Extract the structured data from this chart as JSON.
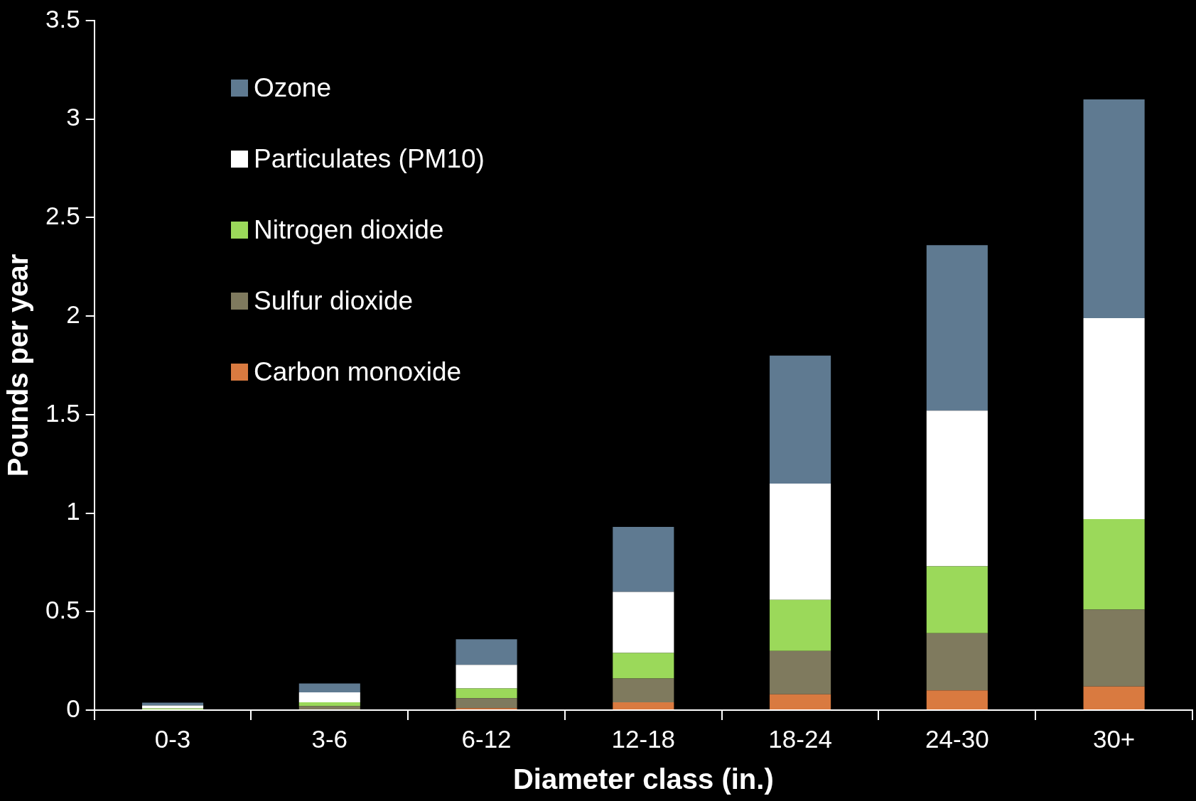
{
  "chart_data": {
    "type": "bar",
    "xlabel": "Diameter class (in.)",
    "ylabel": "Pounds per year",
    "categories": [
      "0-3",
      "3-6",
      "6-12",
      "12-18",
      "18-24",
      "24-30",
      "30+"
    ],
    "stacked": true,
    "legend": "top left",
    "ylim": [
      0,
      3.5
    ],
    "yticks": [
      0,
      0.5,
      1,
      1.5,
      2,
      2.5,
      3,
      3.5
    ],
    "series": [
      {
        "name": "Carbon monoxide",
        "color": "#d97a40",
        "values": [
          null,
          null,
          0.01,
          0.04,
          0.08,
          0.1,
          0.12
        ]
      },
      {
        "name": "Sulfur dioxide",
        "color": "#7f7a5e",
        "values": [
          null,
          0.02,
          0.05,
          0.12,
          0.22,
          0.29,
          0.39
        ]
      },
      {
        "name": "Nitrogen dioxide",
        "color": "#9bd95a",
        "values": [
          0.008,
          0.02,
          0.05,
          0.13,
          0.26,
          0.34,
          0.46
        ]
      },
      {
        "name": "Particulates (PM10)",
        "color": "#ffffff",
        "values": [
          0.015,
          0.05,
          0.12,
          0.31,
          0.59,
          0.79,
          1.02
        ]
      },
      {
        "name": "Ozone",
        "color": "#5f7a91",
        "values": [
          0.015,
          0.045,
          0.13,
          0.33,
          0.65,
          0.84,
          1.11
        ]
      }
    ]
  }
}
